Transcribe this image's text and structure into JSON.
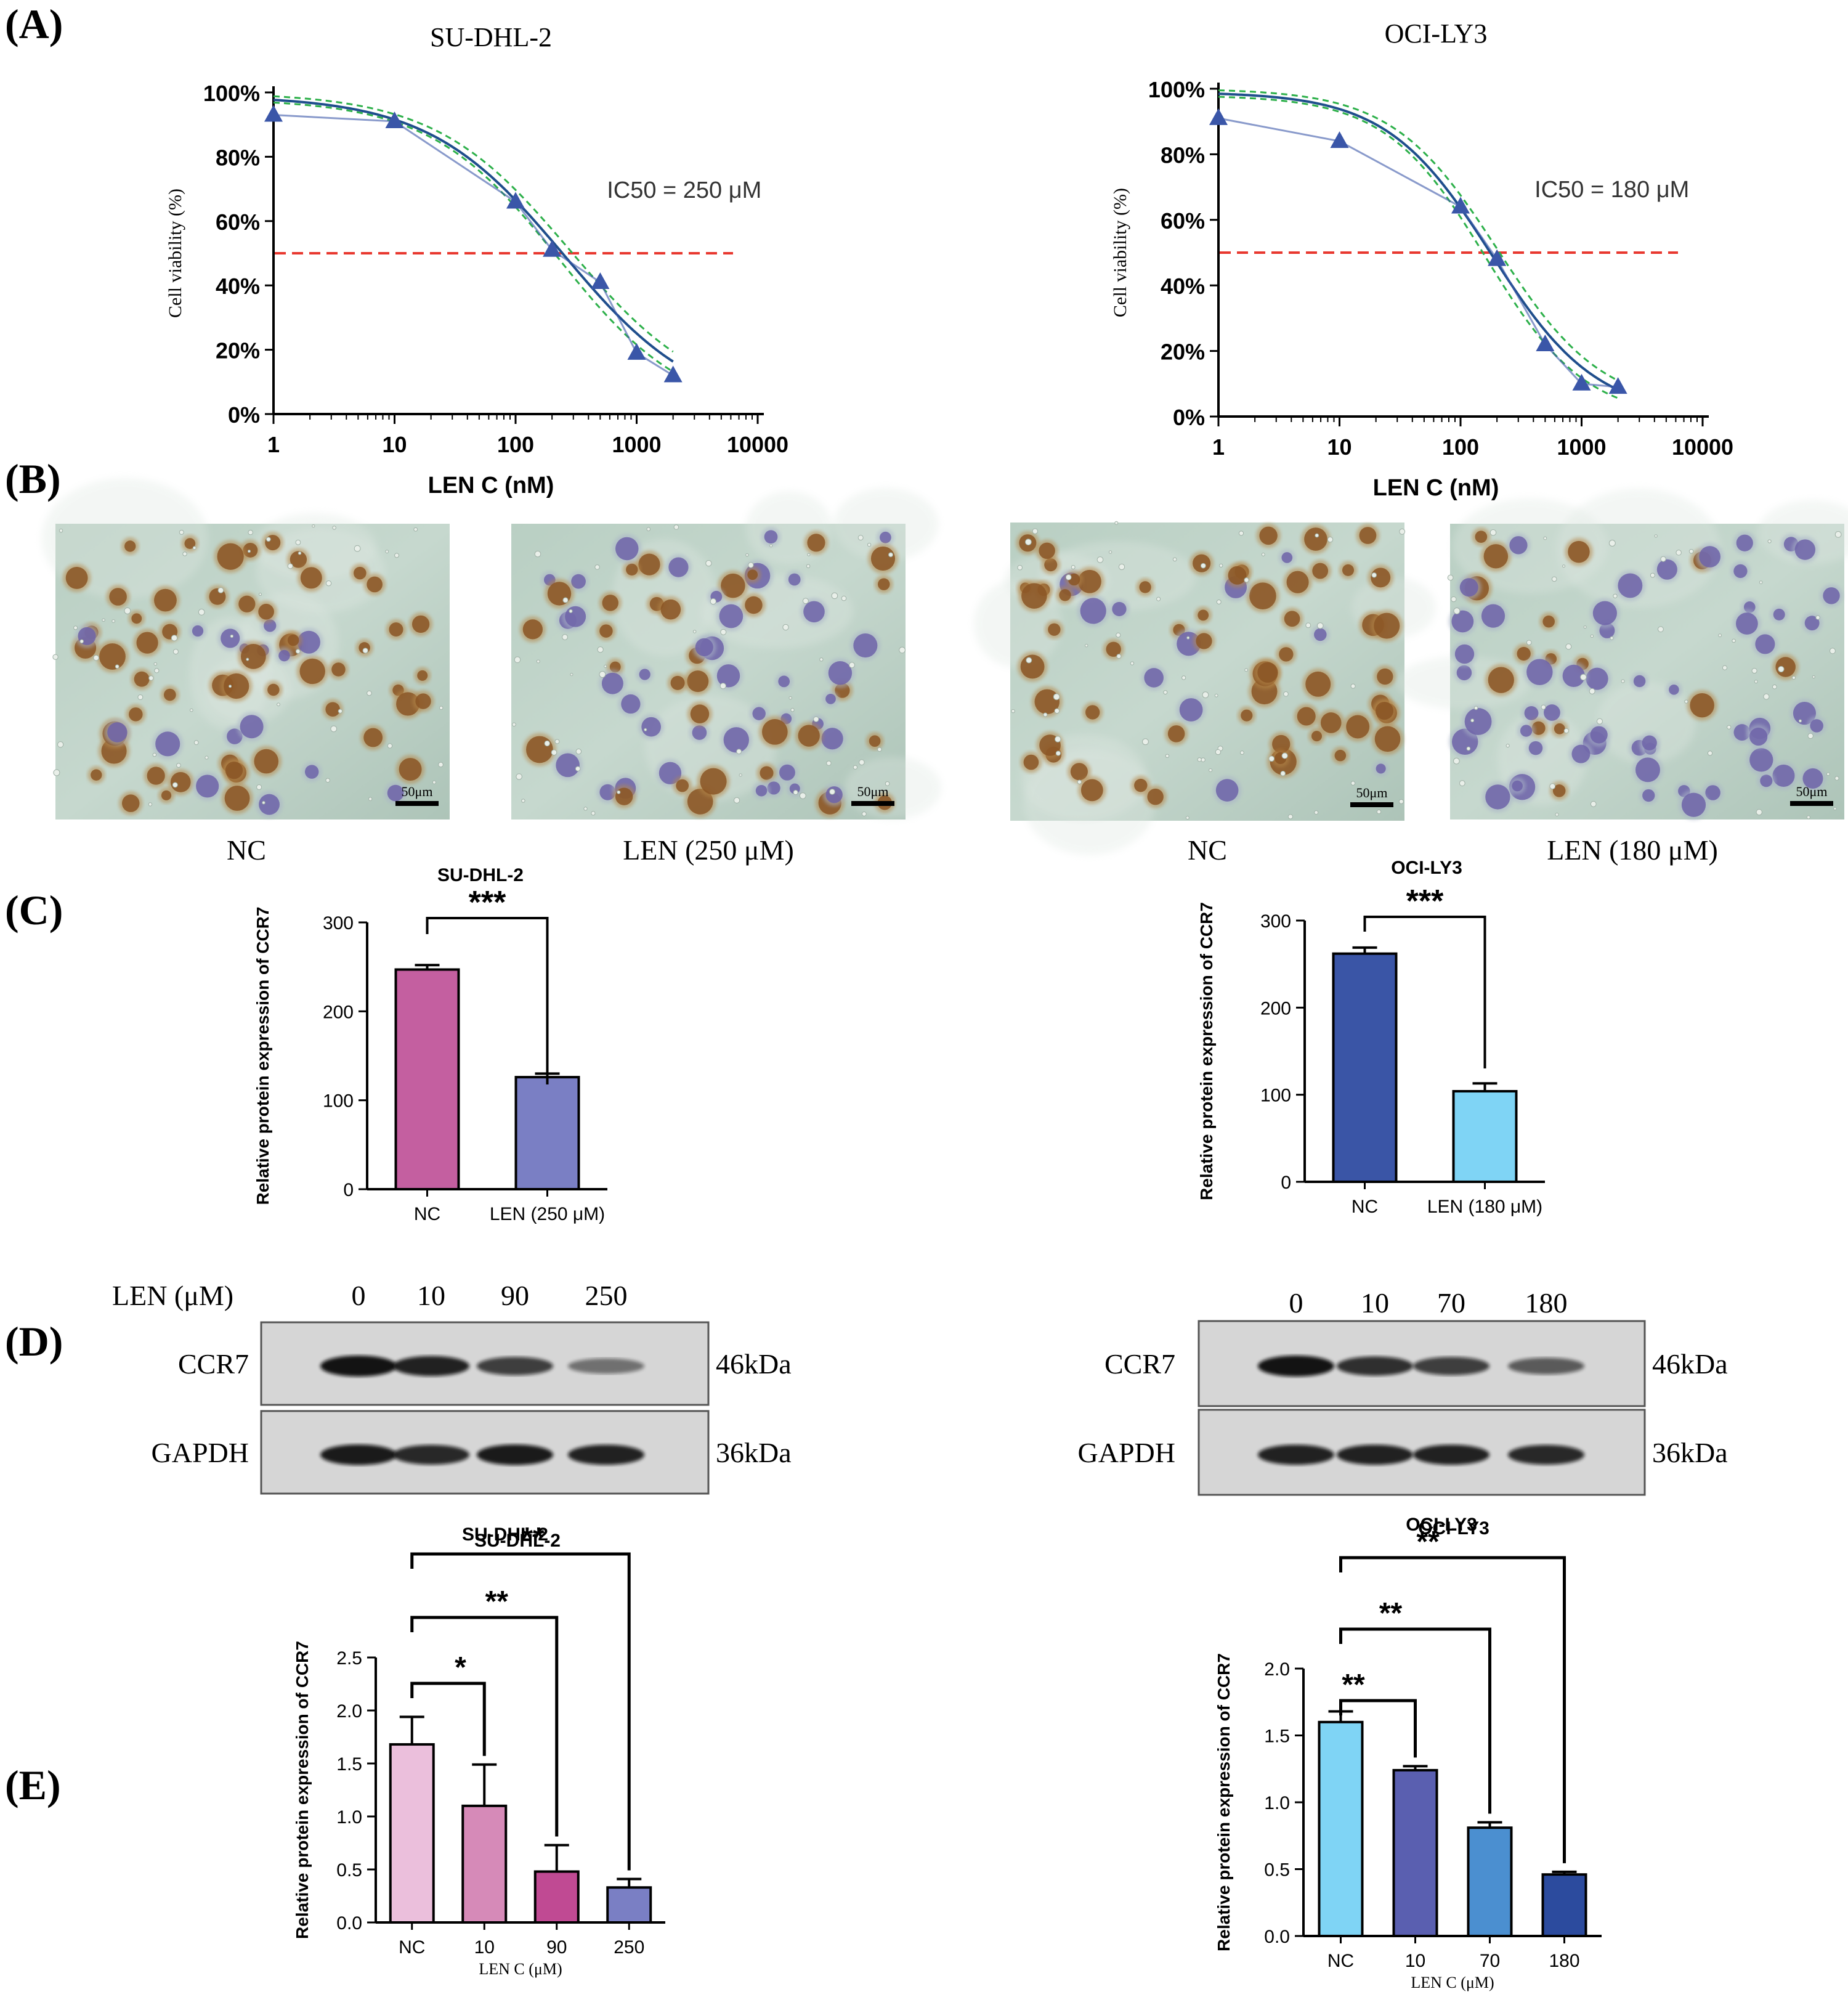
{
  "panel_labels": {
    "A": "(A)",
    "B": "(B)",
    "C": "(C)",
    "D": "(D)",
    "E": "(E)"
  },
  "colors": {
    "curve_blue": "#3a56a8",
    "curve_blue2": "#1f4e8c",
    "curve_green": "#2db04a",
    "ic50_line": "#e8382f",
    "bar_nc_pink": "#c45fa0",
    "bar_len_purple": "#7a7fc4",
    "bar_nc_blue": "#3a55a6",
    "bar_len_cyan": "#7fd4f5",
    "e_left": [
      "#ebbfdc",
      "#d68ab8",
      "#c04a93",
      "#7a7fc4"
    ],
    "e_right": [
      "#7fd4f5",
      "#5a5fb0",
      "#4b8fd0",
      "#2c4b9e"
    ]
  },
  "chart_data": [
    {
      "id": "A-left",
      "type": "line",
      "title": "SU-DHL-2",
      "xlabel": "LEN  C (nM)",
      "ylabel": "Cell viability (%)",
      "xscale": "log",
      "xlim": [
        1,
        10000
      ],
      "ylim": [
        0,
        100
      ],
      "xticks": [
        "1",
        "10",
        "100",
        "1000",
        "10000"
      ],
      "yticks": [
        "0%",
        "20%",
        "40%",
        "60%",
        "80%",
        "100%"
      ],
      "points": {
        "x": [
          1,
          10,
          100,
          200,
          500,
          1000,
          2000
        ],
        "y": [
          93,
          91,
          66,
          51,
          41,
          19,
          12
        ]
      },
      "fit": {
        "ic50": 250,
        "top": 99,
        "bottom": 0,
        "hill": 0.78
      },
      "threshold": 50,
      "annotation": "IC50 = 250 μM"
    },
    {
      "id": "A-right",
      "type": "line",
      "title": "OCI-LY3",
      "xlabel": "LEN  C (nM)",
      "ylabel": "Cell viability (%)",
      "xscale": "log",
      "xlim": [
        1,
        10000
      ],
      "ylim": [
        0,
        100
      ],
      "xticks": [
        "1",
        "10",
        "100",
        "1000",
        "10000"
      ],
      "yticks": [
        "0%",
        "20%",
        "40%",
        "60%",
        "80%",
        "100%"
      ],
      "points": {
        "x": [
          1,
          10,
          100,
          200,
          500,
          1000,
          2000
        ],
        "y": [
          91,
          84,
          64,
          48,
          22,
          10,
          9
        ]
      },
      "fit": {
        "ic50": 180,
        "top": 99,
        "bottom": 0,
        "hill": 1.0
      },
      "threshold": 50,
      "annotation": "IC50 = 180 μM"
    },
    {
      "id": "C-left",
      "type": "bar",
      "title": "SU-DHL-2",
      "ylabel": "Relative protein  expression of CCR7",
      "categories": [
        "NC",
        "LEN (250 μM)"
      ],
      "values": [
        247,
        126
      ],
      "errors": [
        5,
        4
      ],
      "ylim": [
        0,
        300
      ],
      "yticks": [
        "0",
        "100",
        "200",
        "300"
      ],
      "significance": "***"
    },
    {
      "id": "C-right",
      "type": "bar",
      "title": "OCI-LY3",
      "ylabel": "Relative protein  expression of CCR7",
      "categories": [
        "NC",
        "LEN (180 μM)"
      ],
      "values": [
        262,
        104
      ],
      "errors": [
        7,
        9
      ],
      "ylim": [
        0,
        300
      ],
      "yticks": [
        "0",
        "100",
        "200",
        "300"
      ],
      "significance": "***"
    },
    {
      "id": "E-left",
      "type": "bar",
      "title": "SU-DHL-2",
      "xlabel": "LEN C (μM)",
      "ylabel": "Relative protein expression of CCR7",
      "categories": [
        "NC",
        "10",
        "90",
        "250"
      ],
      "values": [
        1.68,
        1.1,
        0.48,
        0.33
      ],
      "errors": [
        0.26,
        0.39,
        0.25,
        0.08
      ],
      "ylim": [
        0,
        2.5
      ],
      "yticks": [
        "0.0",
        "0.5",
        "1.0",
        "1.5",
        "2.0",
        "2.5"
      ],
      "significance": [
        "*",
        "**",
        "**"
      ]
    },
    {
      "id": "E-right",
      "type": "bar",
      "title": "OCI-LY3",
      "xlabel": "LEN C (μM)",
      "ylabel": "Relative protein expression of CCR7",
      "categories": [
        "NC",
        "10",
        "70",
        "180"
      ],
      "values": [
        1.6,
        1.24,
        0.81,
        0.46
      ],
      "errors": [
        0.08,
        0.03,
        0.04,
        0.02
      ],
      "ylim": [
        0,
        2.0
      ],
      "yticks": [
        "0.0",
        "0.5",
        "1.0",
        "1.5",
        "2.0"
      ],
      "significance": [
        "**",
        "**",
        "**"
      ]
    }
  ],
  "ihc": {
    "images": [
      {
        "caption": "NC",
        "scale": "50μm"
      },
      {
        "caption": "LEN (250 μM)",
        "scale": "50μm"
      },
      {
        "caption": "NC",
        "scale": "50μm"
      },
      {
        "caption": "LEN (180 μM)",
        "scale": "50μm"
      }
    ]
  },
  "western": {
    "left": {
      "dose_title": "LEN  (μM)",
      "doses": [
        "0",
        "10",
        "90",
        "250"
      ],
      "bands": [
        {
          "label": "CCR7",
          "weight": "46kDa",
          "intensity": [
            1.0,
            0.9,
            0.7,
            0.35
          ]
        },
        {
          "label": "GAPDH",
          "weight": "36kDa",
          "intensity": [
            0.95,
            0.85,
            0.95,
            0.9
          ]
        }
      ]
    },
    "right": {
      "doses": [
        "0",
        "10",
        "70",
        "180"
      ],
      "bands": [
        {
          "label": "CCR7",
          "weight": "46kDa",
          "intensity": [
            1.0,
            0.8,
            0.7,
            0.5
          ]
        },
        {
          "label": "GAPDH",
          "weight": "36kDa",
          "intensity": [
            0.9,
            0.9,
            0.9,
            0.85
          ]
        }
      ]
    }
  }
}
